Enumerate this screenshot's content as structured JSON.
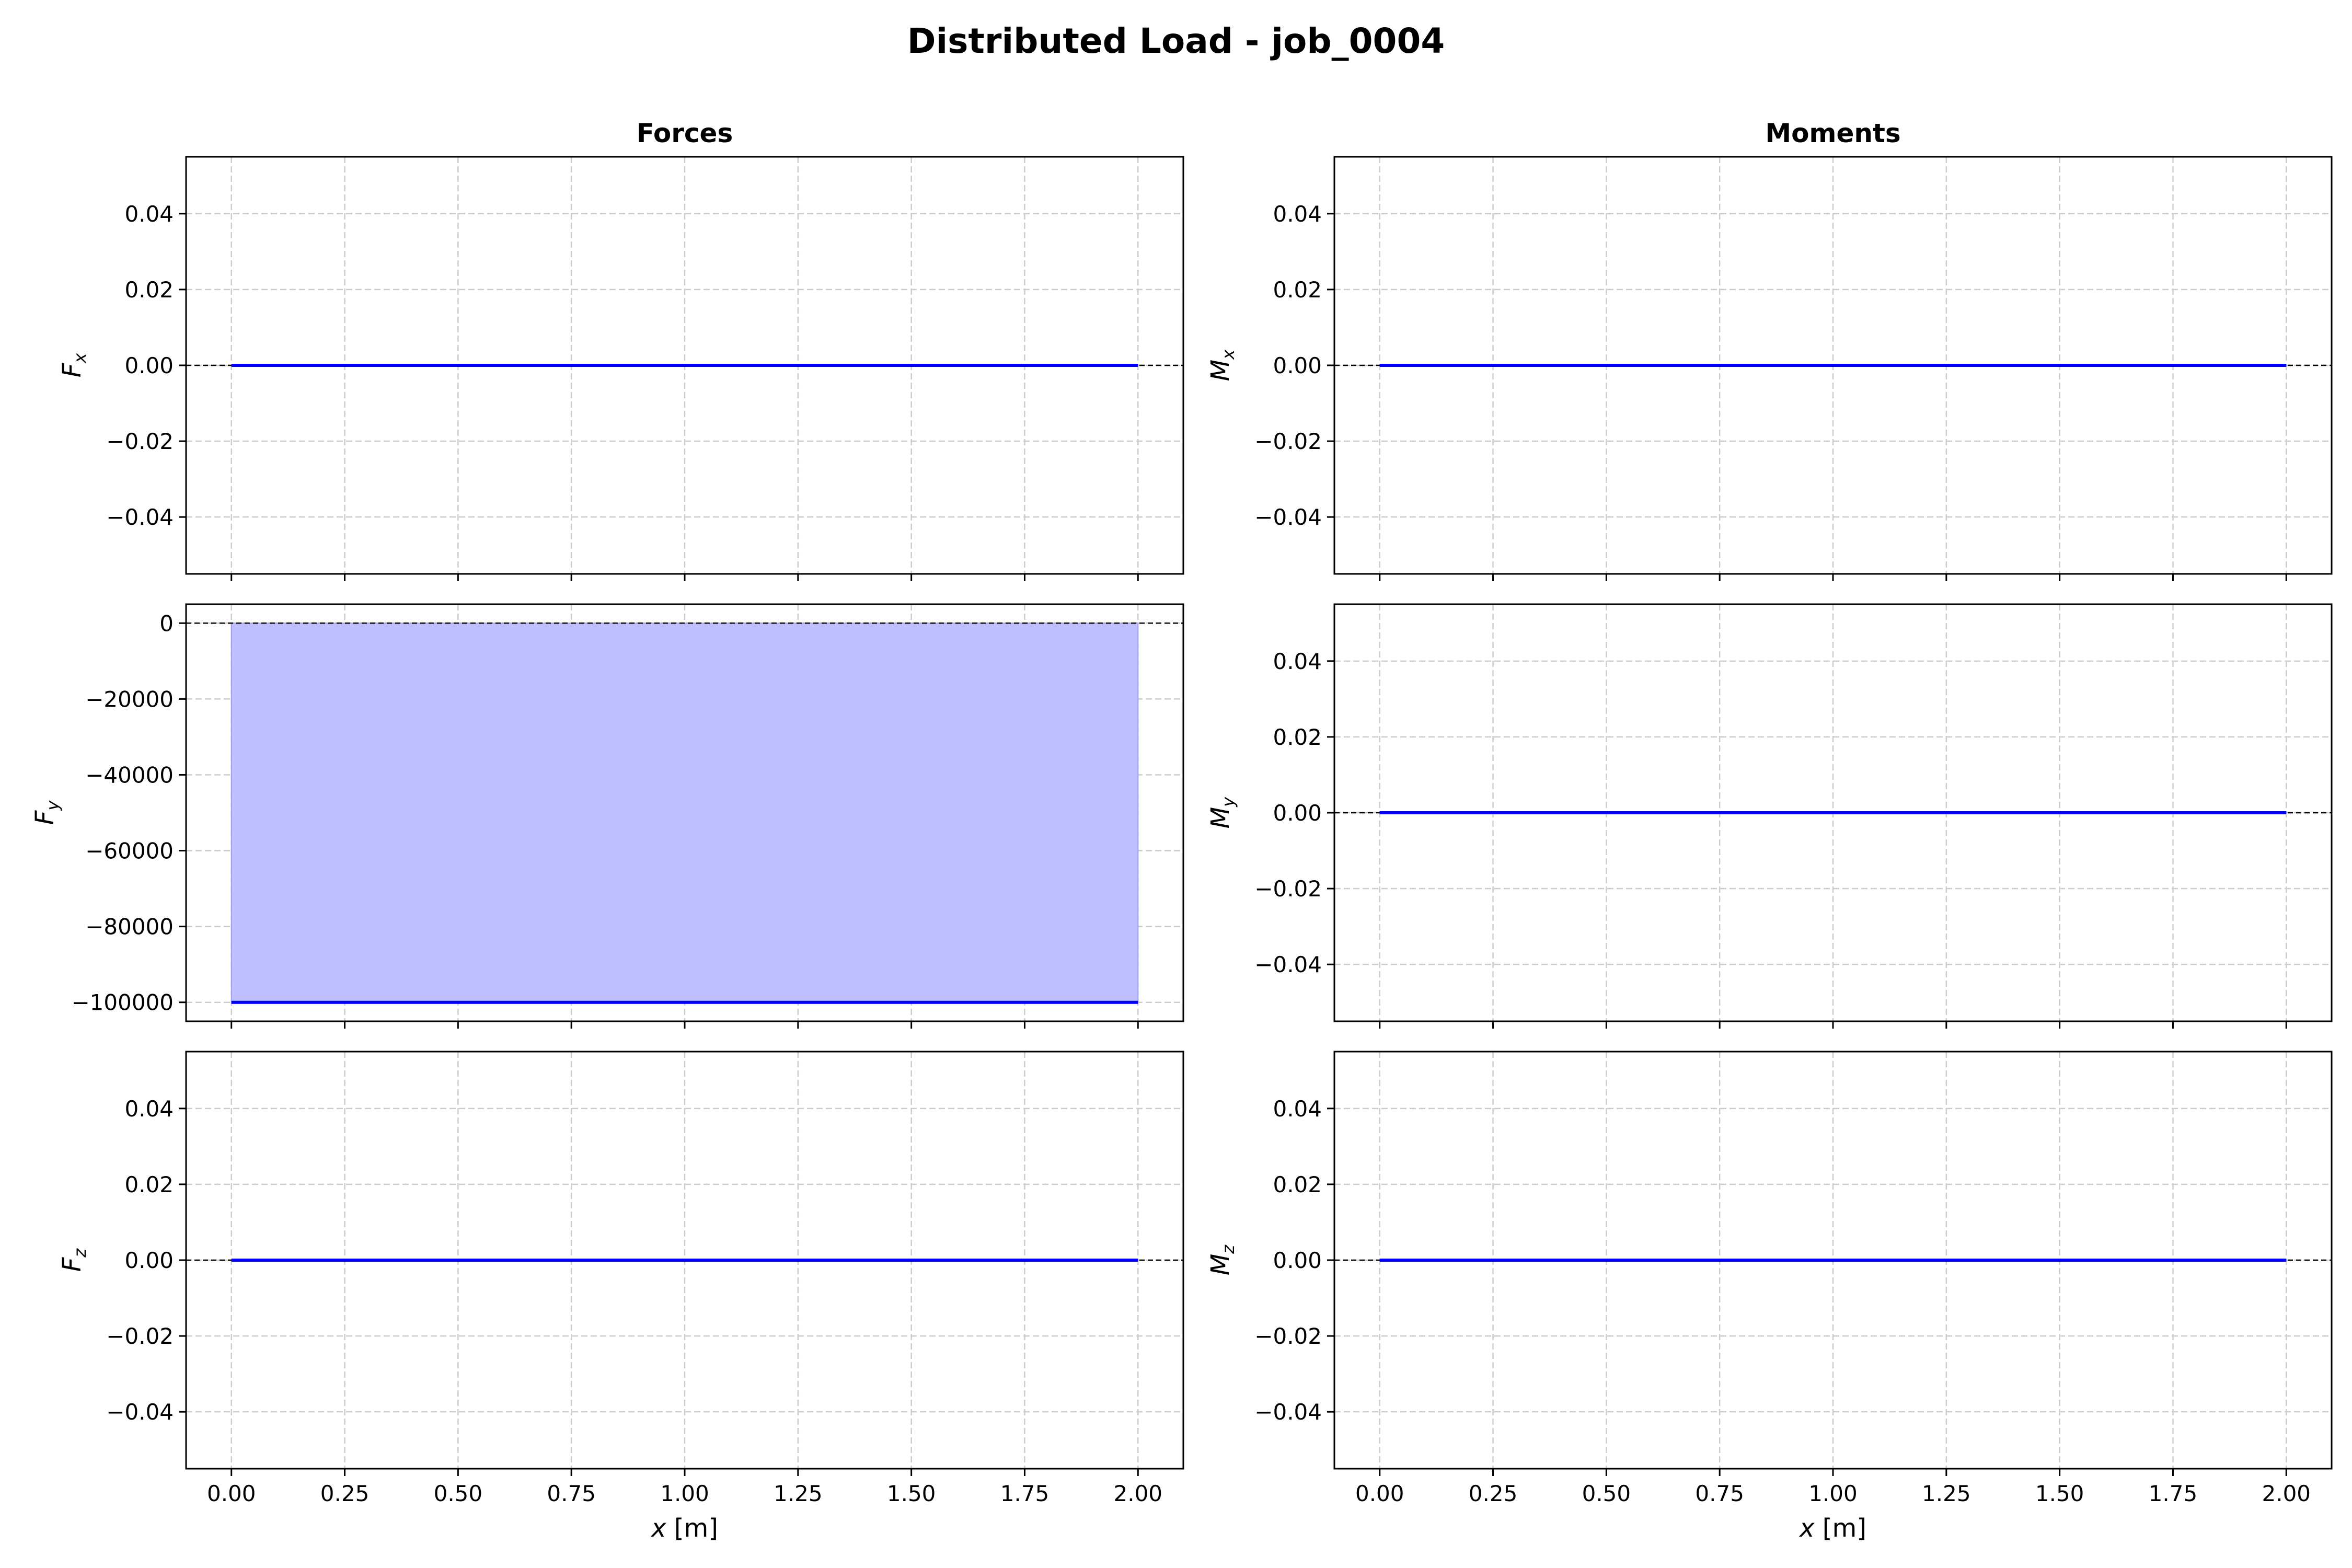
{
  "figure_title": "Distributed Load - job_0004",
  "colors": {
    "line": "#0000ff",
    "fill": "#bfbfff",
    "grid": "#cccccc",
    "axis": "#000000",
    "zero_line": "#000000"
  },
  "chart_data": [
    {
      "id": "fx",
      "type": "line",
      "column_title": "Forces",
      "ylabel": "F",
      "ylabel_sub": "x",
      "x": [
        0.0,
        2.0
      ],
      "y": [
        0.0,
        0.0
      ],
      "fill": false,
      "xlim": [
        -0.1,
        2.1
      ],
      "ylim": [
        -0.055,
        0.055
      ],
      "xticks": [
        0,
        0.25,
        0.5,
        0.75,
        1.0,
        1.25,
        1.5,
        1.75,
        2.0
      ],
      "xtick_labels": [
        "0.00",
        "0.25",
        "0.50",
        "0.75",
        "1.00",
        "1.25",
        "1.50",
        "1.75",
        "2.00"
      ],
      "yticks": [
        0.04,
        0.02,
        0.0,
        -0.02,
        -0.04
      ],
      "ytick_labels": [
        "0.04",
        "0.02",
        "0.00",
        "−0.02",
        "−0.04"
      ],
      "show_xlabels": false,
      "xlabel": ""
    },
    {
      "id": "mx",
      "type": "line",
      "column_title": "Moments",
      "ylabel": "M",
      "ylabel_sub": "x",
      "x": [
        0.0,
        2.0
      ],
      "y": [
        0.0,
        0.0
      ],
      "fill": false,
      "xlim": [
        -0.1,
        2.1
      ],
      "ylim": [
        -0.055,
        0.055
      ],
      "xticks": [
        0,
        0.25,
        0.5,
        0.75,
        1.0,
        1.25,
        1.5,
        1.75,
        2.0
      ],
      "xtick_labels": [
        "0.00",
        "0.25",
        "0.50",
        "0.75",
        "1.00",
        "1.25",
        "1.50",
        "1.75",
        "2.00"
      ],
      "yticks": [
        0.04,
        0.02,
        0.0,
        -0.02,
        -0.04
      ],
      "ytick_labels": [
        "0.04",
        "0.02",
        "0.00",
        "−0.02",
        "−0.04"
      ],
      "show_xlabels": false,
      "xlabel": ""
    },
    {
      "id": "fy",
      "type": "area",
      "column_title": "",
      "ylabel": "F",
      "ylabel_sub": "y",
      "x": [
        0.0,
        2.0
      ],
      "y": [
        -100000,
        -100000
      ],
      "fill": true,
      "xlim": [
        -0.1,
        2.1
      ],
      "ylim": [
        -105000,
        5000
      ],
      "xticks": [
        0,
        0.25,
        0.5,
        0.75,
        1.0,
        1.25,
        1.5,
        1.75,
        2.0
      ],
      "xtick_labels": [
        "0.00",
        "0.25",
        "0.50",
        "0.75",
        "1.00",
        "1.25",
        "1.50",
        "1.75",
        "2.00"
      ],
      "yticks": [
        0,
        -20000,
        -40000,
        -60000,
        -80000,
        -100000
      ],
      "ytick_labels": [
        "0",
        "−20000",
        "−40000",
        "−60000",
        "−80000",
        "−100000"
      ],
      "show_xlabels": false,
      "xlabel": ""
    },
    {
      "id": "my",
      "type": "line",
      "column_title": "",
      "ylabel": "M",
      "ylabel_sub": "y",
      "x": [
        0.0,
        2.0
      ],
      "y": [
        0.0,
        0.0
      ],
      "fill": false,
      "xlim": [
        -0.1,
        2.1
      ],
      "ylim": [
        -0.055,
        0.055
      ],
      "xticks": [
        0,
        0.25,
        0.5,
        0.75,
        1.0,
        1.25,
        1.5,
        1.75,
        2.0
      ],
      "xtick_labels": [
        "0.00",
        "0.25",
        "0.50",
        "0.75",
        "1.00",
        "1.25",
        "1.50",
        "1.75",
        "2.00"
      ],
      "yticks": [
        0.04,
        0.02,
        0.0,
        -0.02,
        -0.04
      ],
      "ytick_labels": [
        "0.04",
        "0.02",
        "0.00",
        "−0.02",
        "−0.04"
      ],
      "show_xlabels": false,
      "xlabel": ""
    },
    {
      "id": "fz",
      "type": "line",
      "column_title": "",
      "ylabel": "F",
      "ylabel_sub": "z",
      "x": [
        0.0,
        2.0
      ],
      "y": [
        0.0,
        0.0
      ],
      "fill": false,
      "xlim": [
        -0.1,
        2.1
      ],
      "ylim": [
        -0.055,
        0.055
      ],
      "xticks": [
        0,
        0.25,
        0.5,
        0.75,
        1.0,
        1.25,
        1.5,
        1.75,
        2.0
      ],
      "xtick_labels": [
        "0.00",
        "0.25",
        "0.50",
        "0.75",
        "1.00",
        "1.25",
        "1.50",
        "1.75",
        "2.00"
      ],
      "yticks": [
        0.04,
        0.02,
        0.0,
        -0.02,
        -0.04
      ],
      "ytick_labels": [
        "0.04",
        "0.02",
        "0.00",
        "−0.02",
        "−0.04"
      ],
      "show_xlabels": true,
      "xlabel": "x",
      "xlabel_unit": "[m]"
    },
    {
      "id": "mz",
      "type": "line",
      "column_title": "",
      "ylabel": "M",
      "ylabel_sub": "z",
      "x": [
        0.0,
        2.0
      ],
      "y": [
        0.0,
        0.0
      ],
      "fill": false,
      "xlim": [
        -0.1,
        2.1
      ],
      "ylim": [
        -0.055,
        0.055
      ],
      "xticks": [
        0,
        0.25,
        0.5,
        0.75,
        1.0,
        1.25,
        1.5,
        1.75,
        2.0
      ],
      "xtick_labels": [
        "0.00",
        "0.25",
        "0.50",
        "0.75",
        "1.00",
        "1.25",
        "1.50",
        "1.75",
        "2.00"
      ],
      "yticks": [
        0.04,
        0.02,
        0.0,
        -0.02,
        -0.04
      ],
      "ytick_labels": [
        "0.04",
        "0.02",
        "0.00",
        "−0.02",
        "−0.04"
      ],
      "show_xlabels": true,
      "xlabel": "x",
      "xlabel_unit": "[m]"
    }
  ]
}
